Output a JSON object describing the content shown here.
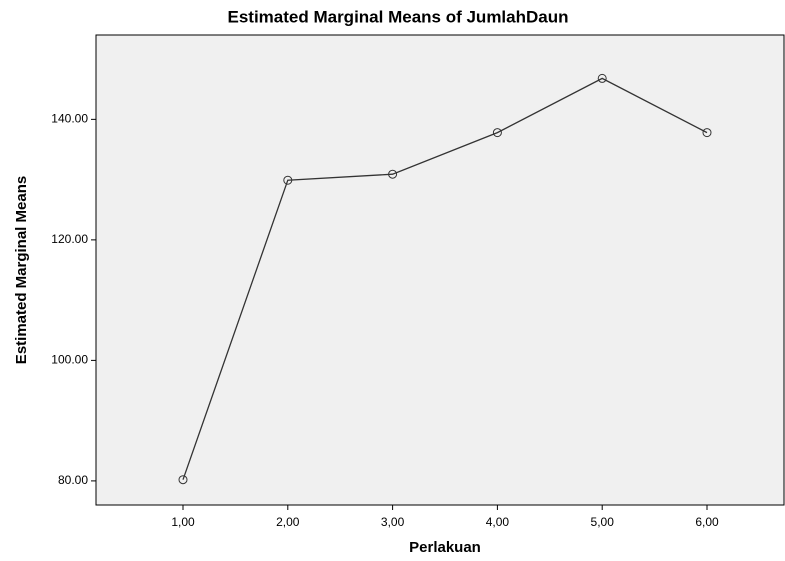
{
  "chart_data": {
    "type": "line",
    "title": "Estimated Marginal Means of JumlahDaun",
    "x_label": "Perlakuan",
    "y_label": "Estimated Marginal Means",
    "categories": [
      "1,00",
      "2,00",
      "3,00",
      "4,00",
      "5,00",
      "6,00"
    ],
    "series": [
      {
        "name": "JumlahDaun",
        "color": "#333333",
        "values": [
          80.2,
          129.9,
          130.9,
          137.8,
          146.8,
          137.8
        ]
      }
    ],
    "ylim": [
      76,
      154
    ],
    "yticks": [
      {
        "value": 80,
        "label": "80.00"
      },
      {
        "value": 100,
        "label": "100.00"
      },
      {
        "value": 120,
        "label": "120.00"
      },
      {
        "value": 140,
        "label": "140.00"
      }
    ],
    "grid": false
  }
}
